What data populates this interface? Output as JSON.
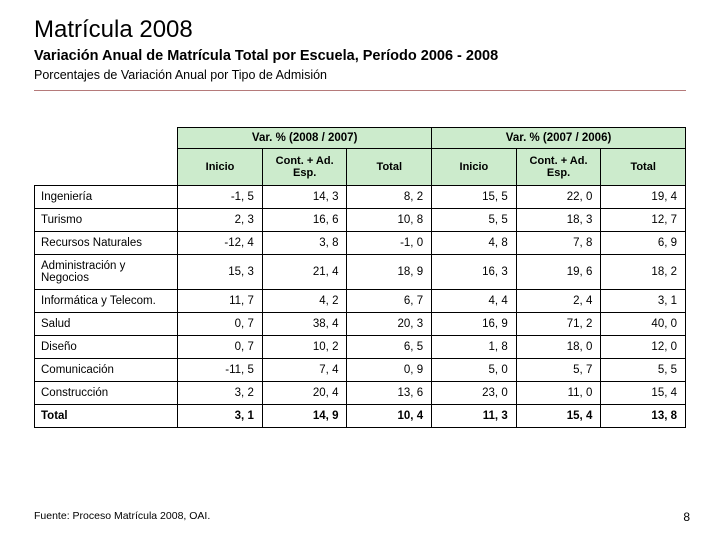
{
  "header": {
    "title": "Matrícula 2008",
    "subtitle": "Variación Anual de Matrícula Total por Escuela, Período 2006 - 2008",
    "subsub": "Porcentajes de Variación Anual por Tipo de Admisión"
  },
  "table": {
    "group1": "Var. % (2008 / 2007)",
    "group2": "Var. % (2007 / 2006)",
    "sub_inicio": "Inicio",
    "sub_cont": "Cont. + Ad. Esp.",
    "sub_total": "Total",
    "rows": [
      {
        "label": "Ingeniería",
        "a": "-1, 5",
        "b": "14, 3",
        "c": "8, 2",
        "d": "15, 5",
        "e": "22, 0",
        "f": "19, 4"
      },
      {
        "label": "Turismo",
        "a": "2, 3",
        "b": "16, 6",
        "c": "10, 8",
        "d": "5, 5",
        "e": "18, 3",
        "f": "12, 7"
      },
      {
        "label": "Recursos Naturales",
        "a": "-12, 4",
        "b": "3, 8",
        "c": "-1, 0",
        "d": "4, 8",
        "e": "7, 8",
        "f": "6, 9"
      },
      {
        "label": "Administración y Negocios",
        "a": "15, 3",
        "b": "21, 4",
        "c": "18, 9",
        "d": "16, 3",
        "e": "19, 6",
        "f": "18, 2"
      },
      {
        "label": "Informática y Telecom.",
        "a": "11, 7",
        "b": "4, 2",
        "c": "6, 7",
        "d": "4, 4",
        "e": "2, 4",
        "f": "3, 1"
      },
      {
        "label": "Salud",
        "a": "0, 7",
        "b": "38, 4",
        "c": "20, 3",
        "d": "16, 9",
        "e": "71, 2",
        "f": "40, 0"
      },
      {
        "label": "Diseño",
        "a": "0, 7",
        "b": "10, 2",
        "c": "6, 5",
        "d": "1, 8",
        "e": "18, 0",
        "f": "12, 0"
      },
      {
        "label": "Comunicación",
        "a": "-11, 5",
        "b": "7, 4",
        "c": "0, 9",
        "d": "5, 0",
        "e": "5, 7",
        "f": "5, 5"
      },
      {
        "label": "Construcción",
        "a": "3, 2",
        "b": "20, 4",
        "c": "13, 6",
        "d": "23, 0",
        "e": "11, 0",
        "f": "15, 4"
      }
    ],
    "total": {
      "label": "Total",
      "a": "3, 1",
      "b": "14, 9",
      "c": "10, 4",
      "d": "11, 3",
      "e": "15, 4",
      "f": "13, 8"
    }
  },
  "footer": {
    "source": "Fuente: Proceso Matrícula 2008, OAI.",
    "pagenum": "8"
  },
  "colors": {
    "header_bg": "#ccebcc",
    "hr_color": "#b57a7a"
  }
}
